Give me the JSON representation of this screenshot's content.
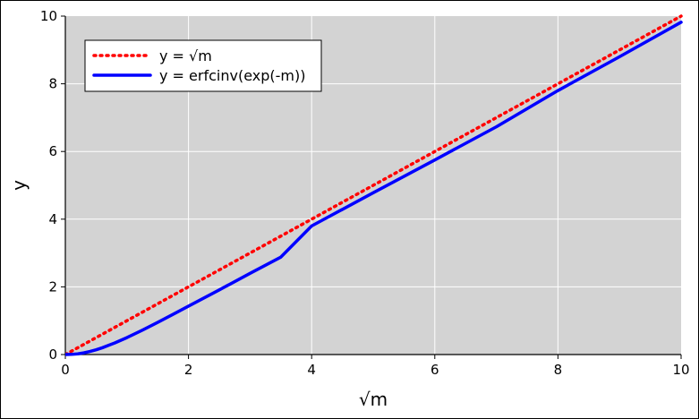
{
  "chart_data": {
    "type": "line",
    "xlabel": "√m",
    "ylabel": "y",
    "xlim": [
      0,
      10
    ],
    "ylim": [
      0,
      10
    ],
    "x_ticks": [
      0,
      2,
      4,
      6,
      8,
      10
    ],
    "y_ticks": [
      0,
      2,
      4,
      6,
      8,
      10
    ],
    "x_tick_labels": [
      "0",
      "2",
      "4",
      "6",
      "8",
      "10"
    ],
    "y_tick_labels": [
      "0",
      "2",
      "4",
      "6",
      "8",
      "10"
    ],
    "grid": true,
    "legend_position": "top-left",
    "background_color": "#d3d3d3",
    "series": [
      {
        "name": "y = √m",
        "color": "#ff0000",
        "style": "dotted",
        "x": [
          0,
          1,
          2,
          3,
          4,
          5,
          6,
          7,
          8,
          9,
          10
        ],
        "y": [
          0,
          1,
          2,
          3,
          4,
          5,
          6,
          7,
          8,
          9,
          10
        ]
      },
      {
        "name": "y = erfcinv(exp(-m))",
        "color": "#0000ff",
        "style": "solid",
        "x": [
          0,
          0.1,
          0.2,
          0.3,
          0.4,
          0.5,
          0.6,
          0.7,
          0.8,
          0.9,
          1.0,
          1.25,
          1.5,
          1.75,
          2,
          2.5,
          3,
          3.5,
          4,
          5,
          6,
          7,
          8,
          9,
          10
        ],
        "y": [
          0,
          0.005,
          0.02,
          0.05,
          0.09,
          0.14,
          0.2,
          0.27,
          0.34,
          0.42,
          0.5,
          0.72,
          0.95,
          1.19,
          1.43,
          1.91,
          2.4,
          2.88,
          3.8,
          4.78,
          5.75,
          6.73,
          7.8,
          8.8,
          9.82
        ]
      }
    ]
  }
}
